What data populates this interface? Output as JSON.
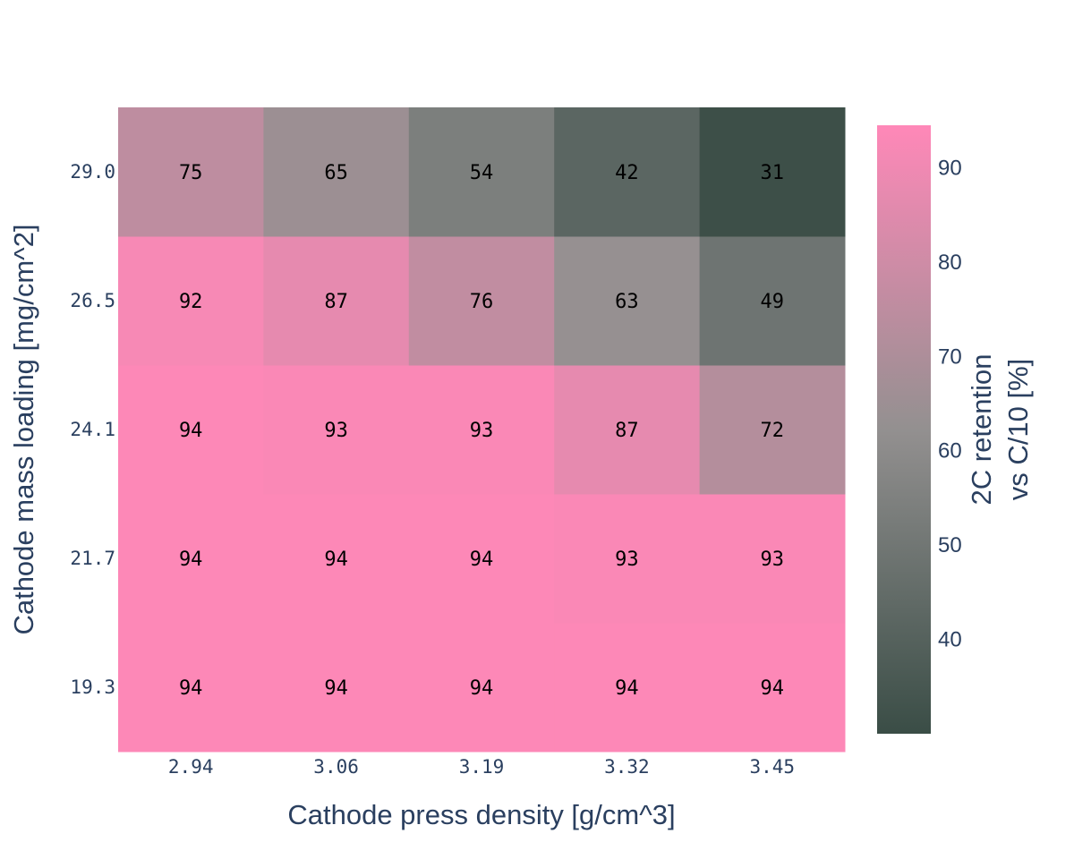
{
  "chart_data": {
    "type": "heatmap",
    "title": "",
    "xlabel": "Cathode press density [g/cm^3]",
    "ylabel": "Cathode mass loading [mg/cm^2]",
    "x_tick_labels": [
      "2.94",
      "3.06",
      "3.19",
      "3.32",
      "3.45"
    ],
    "y_tick_labels": [
      "19.3",
      "21.7",
      "24.1",
      "26.5",
      "29.0"
    ],
    "z": [
      [
        94,
        94,
        94,
        94,
        94
      ],
      [
        94,
        94,
        94,
        93,
        93
      ],
      [
        94,
        93,
        93,
        87,
        72
      ],
      [
        92,
        87,
        76,
        63,
        49
      ],
      [
        75,
        65,
        54,
        42,
        31
      ]
    ],
    "colorbar": {
      "title_lines": [
        "2C retention",
        "vs C/10 [%]"
      ],
      "ticks": [
        40,
        50,
        60,
        70,
        80,
        90
      ],
      "zmin": 30,
      "zmax": 94.5
    },
    "colorscale": [
      [
        0.0,
        "#3a4d46"
      ],
      [
        0.5,
        "#939090"
      ],
      [
        1.0,
        "#ff88b8"
      ]
    ]
  }
}
